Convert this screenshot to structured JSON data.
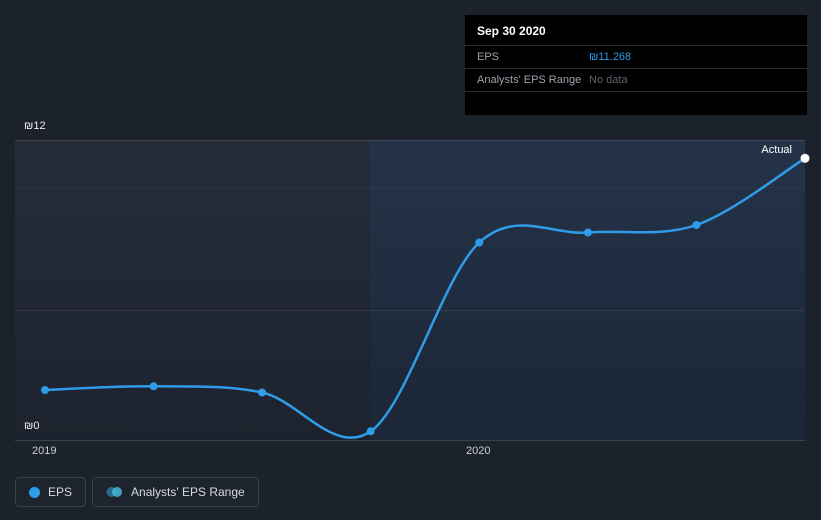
{
  "tooltip": {
    "title": "Sep 30 2020",
    "rows": [
      {
        "label": "EPS",
        "value": "₪11.268"
      },
      {
        "label": "Analysts' EPS Range",
        "value": "No data"
      }
    ]
  },
  "chart": {
    "y_axis": {
      "top_label": "₪12",
      "bottom_label": "₪0"
    },
    "x_axis": {
      "labels": [
        "2019",
        "2020"
      ]
    },
    "annotation": "Actual"
  },
  "legend": {
    "items": [
      {
        "label": "EPS"
      },
      {
        "label": "Analysts' EPS Range"
      }
    ]
  },
  "colors": {
    "line": "#2f9ce8",
    "point": "#2f9ce8",
    "end_point": "#ffffff",
    "value_accent": "#2e9be8",
    "no_data_text": "#5b6470",
    "background": "#1b222c"
  },
  "chart_data": {
    "type": "line",
    "x": [
      "2018-Q4",
      "2019-Q1",
      "2019-Q2",
      "2019-Q3",
      "2019-Q4",
      "2020-Q1",
      "2020-Q2",
      "2020-Q3"
    ],
    "series": [
      {
        "name": "EPS",
        "values": [
          2.0,
          2.15,
          1.9,
          0.35,
          7.9,
          8.3,
          8.6,
          11.268
        ]
      }
    ],
    "visible_x_tick_labels": [
      "2019",
      "2020"
    ],
    "y_tick_labels": [
      "₪12",
      "₪0"
    ],
    "ylim": [
      0,
      12
    ],
    "ylabel": "EPS (₪)",
    "legend": [
      "EPS",
      "Analysts' EPS Range"
    ],
    "legend_position": "bottom",
    "annotations": [
      "Actual"
    ],
    "grid": true,
    "last_point_label": {
      "date": "Sep 30 2020",
      "eps": 11.268,
      "analysts_range": "No data"
    }
  }
}
